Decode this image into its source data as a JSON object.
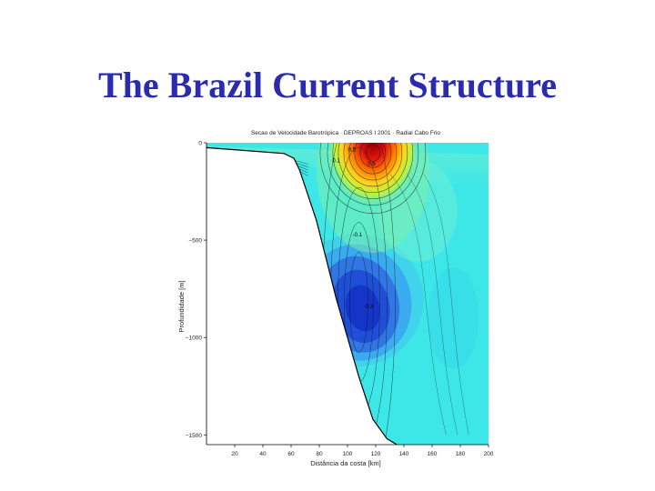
{
  "slide": {
    "title": "The Brazil Current Structure",
    "title_color": "#2b2bb0"
  },
  "chart_data": {
    "type": "heatmap",
    "title": "Secao de Velocidade Barotrópica · DEPROAS I 2001 · Radial Cabo Frio",
    "xlabel": "Distância da costa [km]",
    "ylabel": "Profundidade [m]",
    "x_ticks": [
      20,
      40,
      60,
      80,
      100,
      120,
      140,
      160,
      180,
      200
    ],
    "y_ticks": [
      0,
      -500,
      -1000,
      -1500
    ],
    "y_tick_labels": [
      "0",
      "−500",
      "−1000",
      "−1500"
    ],
    "xlim": [
      0,
      200
    ],
    "ylim": [
      -1550,
      0
    ],
    "contour_labels": [
      {
        "text": "0.1",
        "x": 92,
        "y": -100
      },
      {
        "text": "0.5",
        "x": 103,
        "y": -45
      },
      {
        "text": "0.9",
        "x": 117,
        "y": -120
      },
      {
        "text": "-0.1",
        "x": 107,
        "y": -480
      },
      {
        "text": "-0.3",
        "x": 115,
        "y": -850
      }
    ],
    "core_maxima": {
      "southward_core": {
        "x": 118,
        "depth": -80,
        "value": 0.9
      },
      "northward_undercurrent": {
        "x": 110,
        "depth": -850,
        "value": -0.3
      }
    },
    "colors": {
      "background_field": "#3ee7e7",
      "strong_positive": "#e01010",
      "strong_negative": "#1535c8",
      "bathymetry_mask": "#ffffff"
    }
  }
}
